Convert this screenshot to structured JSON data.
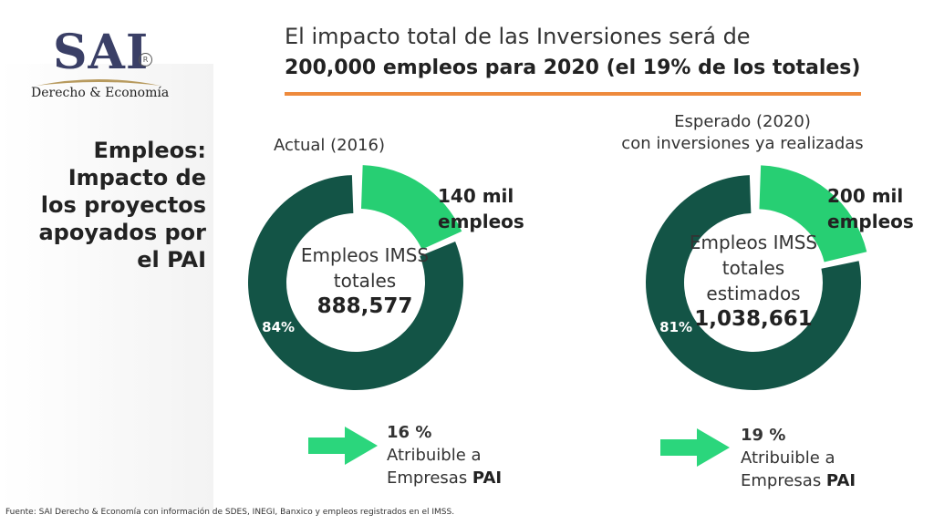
{
  "logo": {
    "name": "SAI",
    "subtitle": "Derecho & Economía",
    "mark": "R"
  },
  "sidebar": {
    "title_lines": [
      "Empleos:",
      "Impacto de",
      "los proyectos",
      "apoyados por",
      "el PAI"
    ]
  },
  "header": {
    "line1": "El impacto total de las Inversiones será de",
    "line2": "200,000 empleos para 2020 (el 19% de los totales)"
  },
  "colors": {
    "dark": "#135446",
    "light": "#27cf73",
    "accent": "#ee8a3c",
    "arrow": "#2bd67c"
  },
  "chart_data": [
    {
      "type": "pie",
      "title": "Actual (2016)",
      "center_lines": [
        "Empleos IMSS",
        "totales"
      ],
      "center_value": "888,577",
      "slices": [
        {
          "label": "84%",
          "value": 84,
          "color": "#135446"
        },
        {
          "label_lines": [
            "140 mil",
            "empleos"
          ],
          "value": 16,
          "color": "#27cf73"
        }
      ],
      "note": {
        "pct": "16 %",
        "text1": "Atribuible a",
        "text2_prefix": "Empresas ",
        "text2_bold": "PAI"
      }
    },
    {
      "type": "pie",
      "title_lines": [
        "Esperado (2020)",
        "con inversiones ya realizadas"
      ],
      "center_lines": [
        "Empleos IMSS",
        "totales",
        "estimados"
      ],
      "center_value": "1,038,661",
      "slices": [
        {
          "label": "81%",
          "value": 81,
          "color": "#135446"
        },
        {
          "label_lines": [
            "200 mil",
            "empleos"
          ],
          "value": 19,
          "color": "#27cf73"
        }
      ],
      "note": {
        "pct": "19 %",
        "text1": "Atribuible a",
        "text2_prefix": "Empresas ",
        "text2_bold": "PAI"
      }
    }
  ],
  "footnote": "Fuente: SAI Derecho & Economía con información de SDES, INEGI, Banxico y empleos registrados en el IMSS."
}
